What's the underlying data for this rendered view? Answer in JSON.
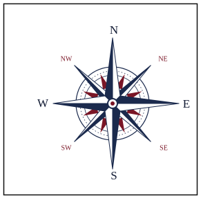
{
  "directions": [
    {
      "label": "N"
    },
    {
      "label": "NE"
    },
    {
      "label": "E"
    },
    {
      "label": "SE"
    },
    {
      "label": "S"
    },
    {
      "label": "SW"
    },
    {
      "label": "W"
    },
    {
      "label": "NW"
    }
  ]
}
